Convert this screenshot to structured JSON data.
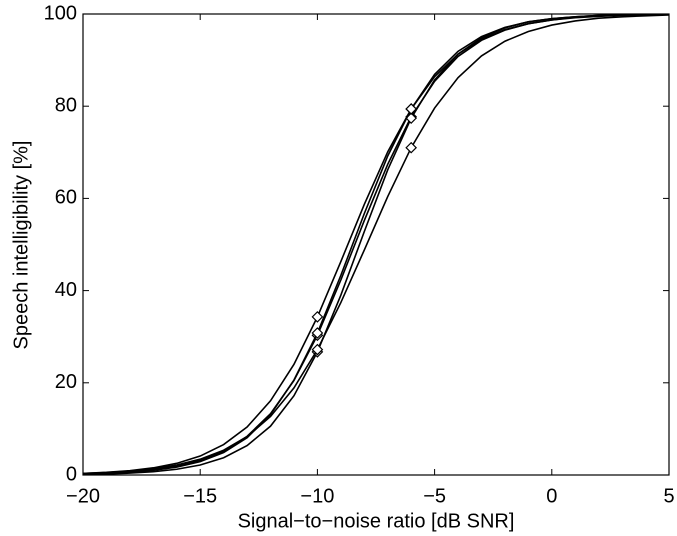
{
  "chart_data": {
    "type": "line",
    "xlabel": "Signal−to−noise ratio [dB SNR]",
    "ylabel": "Speech intelligibility [%]",
    "x": [
      -20,
      -19,
      -18,
      -17,
      -16,
      -15,
      -14,
      -13,
      -12,
      -11,
      -10,
      -9,
      -8,
      -7,
      -6,
      -5,
      -4,
      -3,
      -2,
      -1,
      0,
      1,
      2,
      3,
      4,
      5
    ],
    "color": "#000000",
    "series": [
      {
        "values": [
          0.24,
          0.4,
          0.68,
          1.13,
          1.89,
          3.13,
          5.15,
          8.38,
          13.3,
          20.5,
          30.3,
          42.3,
          55.2,
          67.4,
          77.7,
          85.4,
          90.8,
          94.3,
          96.5,
          97.9,
          98.7,
          99.3,
          99.6,
          99.7,
          99.8,
          99.9
        ],
        "markers": {
          "x": [
            -10,
            -6
          ],
          "y": [
            30.3,
            77.7
          ]
        }
      },
      {
        "values": [
          0.35,
          0.58,
          0.95,
          1.55,
          2.53,
          4.11,
          6.6,
          10.4,
          16.1,
          24.0,
          34.3,
          46.3,
          58.7,
          70.1,
          79.4,
          86.4,
          91.3,
          94.5,
          96.6,
          97.9,
          98.7,
          99.2,
          99.5,
          99.7,
          99.8,
          99.9
        ],
        "markers": {
          "x": [
            -10,
            -6
          ],
          "y": [
            34.3,
            79.4
          ]
        }
      },
      {
        "values": [
          0.13,
          0.24,
          0.41,
          0.72,
          1.25,
          2.17,
          3.74,
          6.37,
          10.6,
          17.2,
          26.7,
          39.0,
          52.8,
          66.2,
          77.4,
          85.7,
          91.3,
          94.8,
          97.0,
          98.3,
          99.0,
          99.4,
          99.7,
          99.8,
          99.9,
          99.9
        ],
        "markers": {
          "x": [
            -10,
            -6
          ],
          "y": [
            26.7,
            77.4
          ]
        }
      },
      {
        "values": [
          0.34,
          0.54,
          0.86,
          1.37,
          2.17,
          3.43,
          5.38,
          8.33,
          12.7,
          18.9,
          27.2,
          37.4,
          48.8,
          60.4,
          71.0,
          79.6,
          86.2,
          90.9,
          94.1,
          96.2,
          97.6,
          98.5,
          99.1,
          99.4,
          99.6,
          99.8
        ],
        "markers": {
          "x": [
            -10,
            -6
          ],
          "y": [
            27.2,
            71.0
          ]
        }
      },
      {
        "values": [
          0.2,
          0.34,
          0.59,
          1.0,
          1.71,
          2.91,
          4.88,
          8.09,
          13.1,
          20.6,
          30.8,
          43.3,
          56.7,
          69.2,
          79.4,
          86.9,
          91.9,
          95.1,
          97.1,
          98.3,
          99.0,
          99.4,
          99.7,
          99.8,
          99.9,
          99.9
        ],
        "markers": {
          "x": [
            -10,
            -6
          ],
          "y": [
            30.8,
            79.4
          ]
        }
      }
    ],
    "xlim": [
      -20,
      5
    ],
    "xticks": [
      {
        "value": -20,
        "label": "−20"
      },
      {
        "value": -15,
        "label": "−15"
      },
      {
        "value": -10,
        "label": "−10"
      },
      {
        "value": -5,
        "label": "−5"
      },
      0,
      5
    ],
    "ylim": [
      0,
      100
    ],
    "yticks": [
      0,
      20,
      40,
      60,
      80,
      100
    ],
    "grid": false
  }
}
